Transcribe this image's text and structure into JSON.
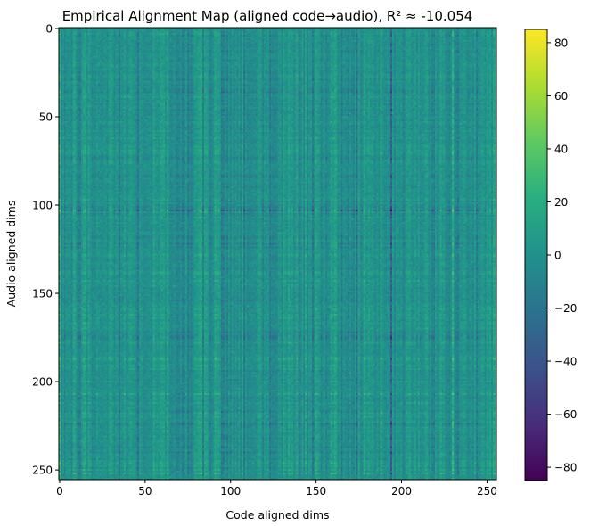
{
  "chart_data": {
    "type": "heatmap",
    "title": "Empirical Alignment Map (aligned code→audio), R² ≈ -10.054",
    "xlabel": "Code aligned dims",
    "ylabel": "Audio aligned dims",
    "x_range": [
      0,
      255
    ],
    "y_range": [
      0,
      255
    ],
    "x_ticks": [
      0,
      50,
      100,
      150,
      200,
      250
    ],
    "y_ticks": [
      0,
      50,
      100,
      150,
      200,
      250
    ],
    "y_inverted": true,
    "grid": false,
    "colormap": "viridis",
    "colorbar": {
      "range": [
        -85,
        85
      ],
      "ticks": [
        -80,
        -60,
        -40,
        -20,
        0,
        20,
        40,
        60,
        80
      ]
    },
    "matrix_size": [
      256,
      256
    ],
    "value_summary": {
      "typical_range": [
        -20,
        20
      ],
      "extremes_observed_approx": [
        -60,
        60
      ],
      "structure": "noisy matrix with pronounced vertical striping by code dimension and faint horizontal banding"
    }
  }
}
